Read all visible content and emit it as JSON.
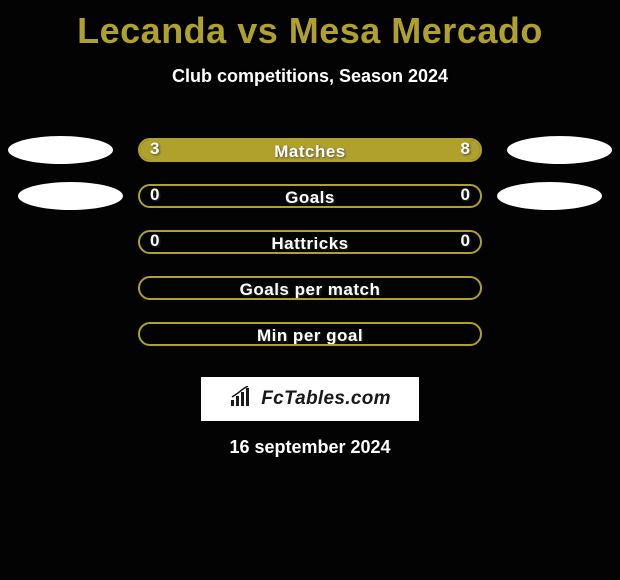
{
  "title": "Lecanda vs Mesa Mercado",
  "subtitle": "Club competitions, Season 2024",
  "rows": [
    {
      "label": "Matches",
      "left_value": "3",
      "right_value": "8",
      "left_fill_pct": 27,
      "right_fill_pct": 73,
      "show_left_ellipse": true,
      "show_right_ellipse": true,
      "ellipse_variant": 1
    },
    {
      "label": "Goals",
      "left_value": "0",
      "right_value": "0",
      "left_fill_pct": 0,
      "right_fill_pct": 0,
      "show_left_ellipse": true,
      "show_right_ellipse": true,
      "ellipse_variant": 2
    },
    {
      "label": "Hattricks",
      "left_value": "0",
      "right_value": "0",
      "left_fill_pct": 0,
      "right_fill_pct": 0,
      "show_left_ellipse": false,
      "show_right_ellipse": false
    },
    {
      "label": "Goals per match",
      "left_value": "",
      "right_value": "",
      "left_fill_pct": 0,
      "right_fill_pct": 0,
      "show_left_ellipse": false,
      "show_right_ellipse": false
    },
    {
      "label": "Min per goal",
      "left_value": "",
      "right_value": "",
      "left_fill_pct": 0,
      "right_fill_pct": 0,
      "show_left_ellipse": false,
      "show_right_ellipse": false
    }
  ],
  "colors": {
    "accent": "#b0a12d",
    "background": "#030303",
    "text_white": "#ffffff",
    "ellipse_fill": "#ffffff",
    "logo_bg": "#ffffff"
  },
  "logo_text": "FcTables.com",
  "date": "16 september 2024"
}
